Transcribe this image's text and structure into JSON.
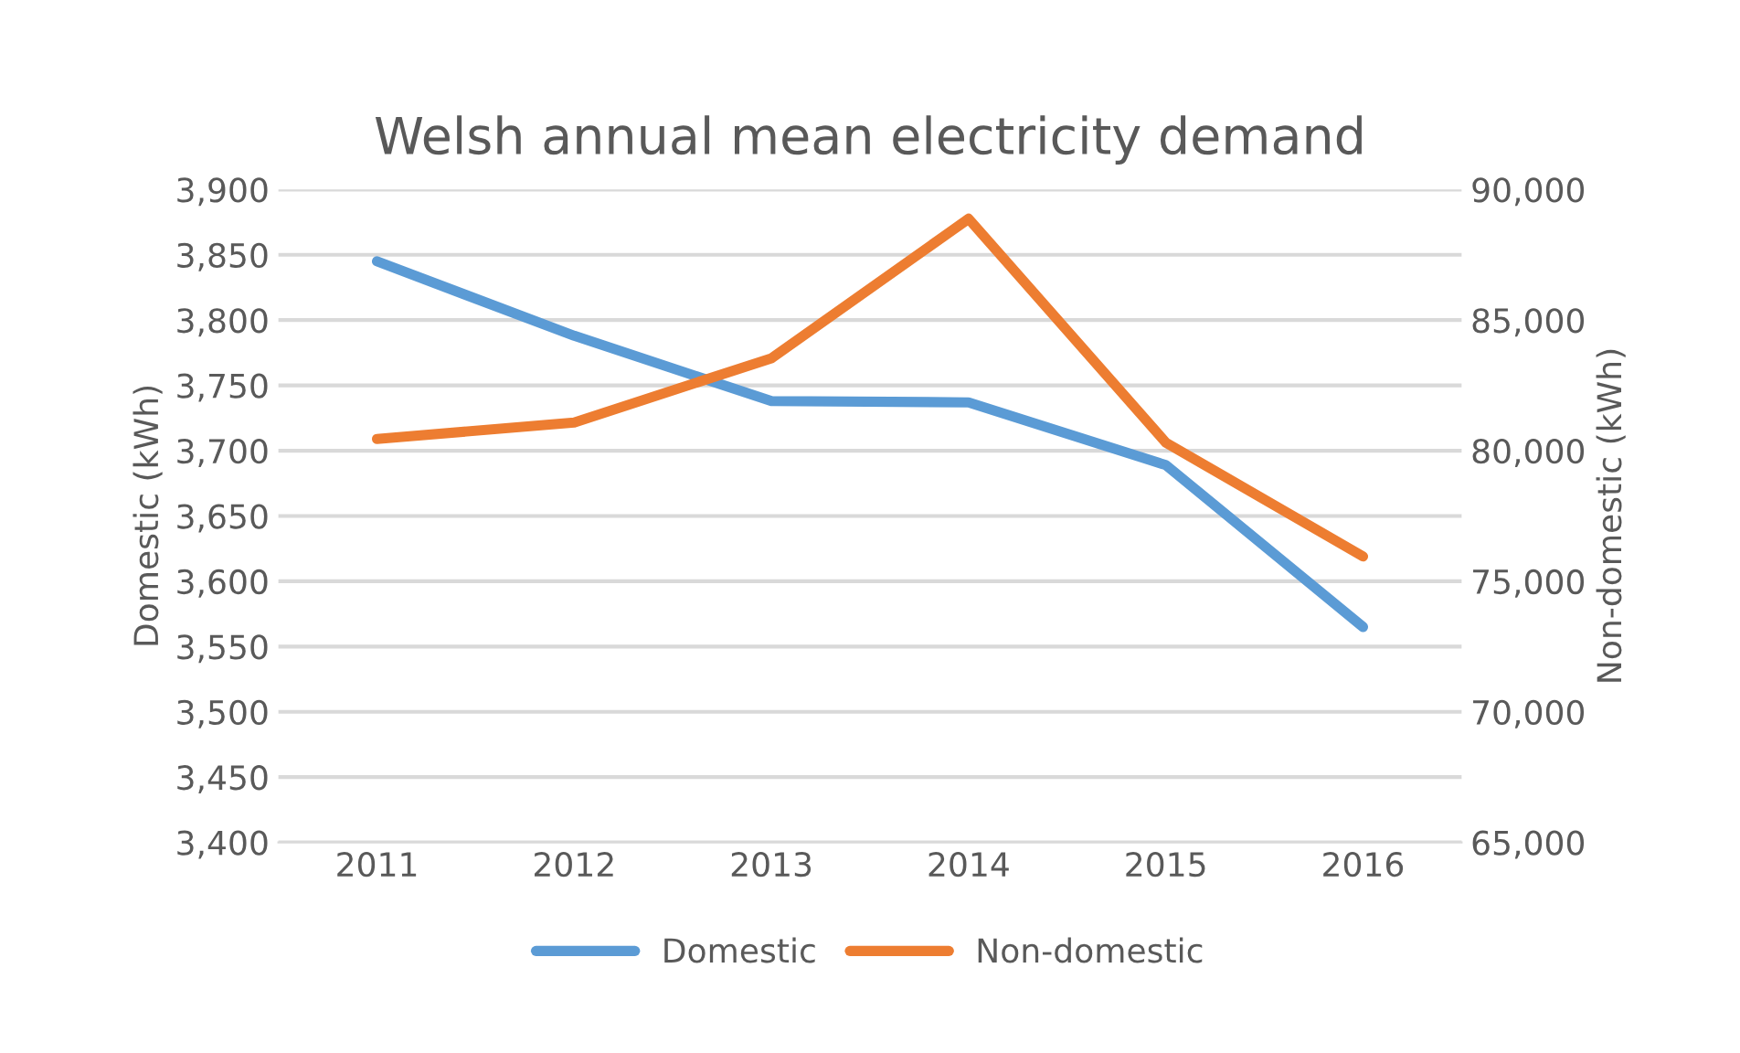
{
  "chart_data": {
    "type": "line",
    "title": "Welsh annual mean electricity demand",
    "categories": [
      "2011",
      "2012",
      "2013",
      "2014",
      "2015",
      "2016"
    ],
    "ylabel": "Domestic (kWh)",
    "y2label": "Non-domestic (kWh)",
    "series": [
      {
        "name": "Domestic",
        "color": "#5b9bd5",
        "values": [
          3845,
          3788,
          3738,
          3737,
          3689,
          3565
        ]
      },
      {
        "name": "Non-domestic",
        "color": "#ed7d31",
        "axis": "y2",
        "values": [
          80450,
          81080,
          83540,
          88880,
          80310,
          75950
        ]
      }
    ],
    "ylim": [
      3400,
      3900
    ],
    "yticks": [
      {
        "value": 3400,
        "label": "3,400"
      },
      {
        "value": 3450,
        "label": "3,450"
      },
      {
        "value": 3500,
        "label": "3,500"
      },
      {
        "value": 3550,
        "label": "3,550"
      },
      {
        "value": 3600,
        "label": "3,600"
      },
      {
        "value": 3650,
        "label": "3,650"
      },
      {
        "value": 3700,
        "label": "3,700"
      },
      {
        "value": 3750,
        "label": "3,750"
      },
      {
        "value": 3800,
        "label": "3,800"
      },
      {
        "value": 3850,
        "label": "3,850"
      },
      {
        "value": 3900,
        "label": "3,900"
      }
    ],
    "y2lim": [
      65000,
      90000
    ],
    "y2ticks": [
      {
        "value": 65000,
        "label": "65,000"
      },
      {
        "value": 70000,
        "label": "70,000"
      },
      {
        "value": 75000,
        "label": "75,000"
      },
      {
        "value": 80000,
        "label": "80,000"
      },
      {
        "value": 85000,
        "label": "85,000"
      },
      {
        "value": 90000,
        "label": "90,000"
      }
    ],
    "grid": "y",
    "legend": "bottom",
    "marker": "none",
    "line_style": "solid"
  }
}
